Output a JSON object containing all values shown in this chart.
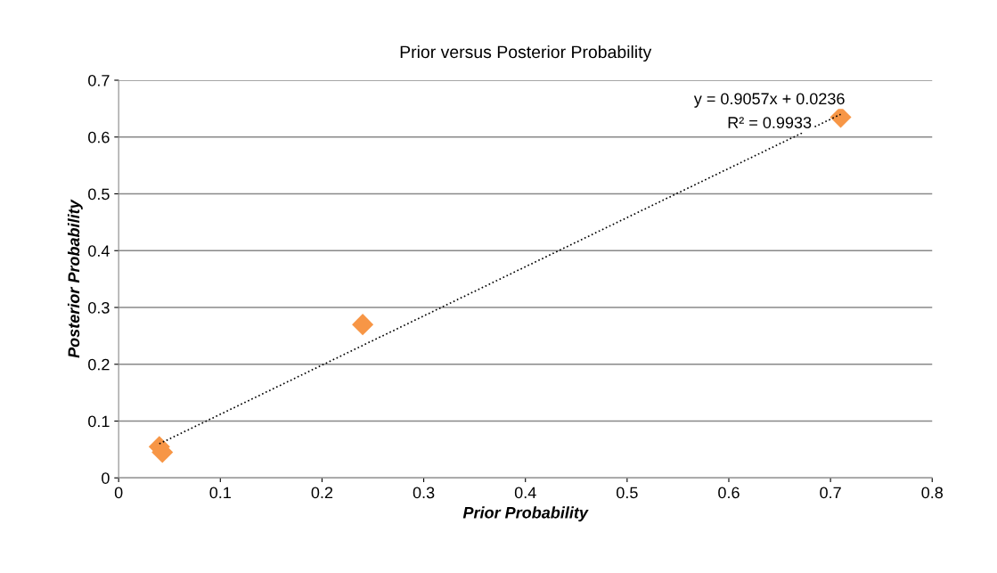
{
  "chart_data": {
    "type": "scatter",
    "title": "Prior versus Posterior Probability",
    "xlabel": "Prior Probability",
    "ylabel": "Posterior Probability",
    "series": [
      {
        "color": "#f79646",
        "marker": "diamond",
        "x": [
          0.04,
          0.043,
          0.24,
          0.71
        ],
        "values": [
          0.055,
          0.045,
          0.27,
          0.635
        ]
      },
      {
        "type": "line",
        "color": "#000000",
        "marker": "none",
        "line_style": "dotted",
        "x": [
          0.04,
          0.71
        ],
        "values": [
          0.06,
          0.64
        ]
      }
    ],
    "annotations": [
      "y = 0.9057x + 0.0236",
      "R² = 0.9933"
    ],
    "xlim": [
      0,
      0.8
    ],
    "xticks": [
      0,
      0.1,
      0.2,
      0.3,
      0.4,
      0.5,
      0.6,
      0.7,
      0.8
    ],
    "ylim": [
      0,
      0.7
    ],
    "yticks": [
      0,
      0.1,
      0.2,
      0.3,
      0.4,
      0.5,
      0.6,
      0.7
    ],
    "grid": "y",
    "legend": false
  }
}
